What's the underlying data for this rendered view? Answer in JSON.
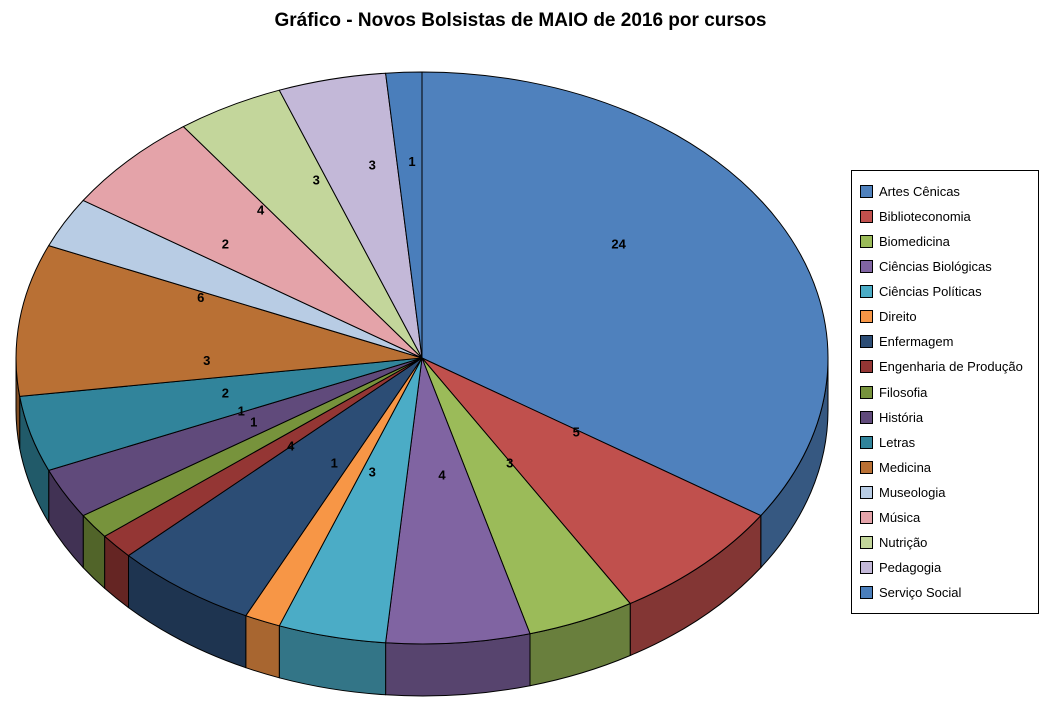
{
  "title": "Gráfico - Novos Bolsistas de MAIO de 2016 por cursos",
  "background_color": "#FFFFFF",
  "legend": {
    "border_color": "#000000",
    "position": "right"
  },
  "chart_data": {
    "type": "pie",
    "style": "3d",
    "title": "Gráfico - Novos Bolsistas de MAIO de 2016 por cursos",
    "direction": "clockwise",
    "start_angle_deg": 0,
    "data_labels": "value",
    "legend_position": "right",
    "categories": [
      "Artes Cênicas",
      "Biblioteconomia",
      "Biomedicina",
      "Ciências Biológicas",
      "Ciências Políticas",
      "Direito",
      "Enfermagem",
      "Engenharia de Produção",
      "Filosofia",
      "História",
      "Letras",
      "Medicina",
      "Museologia",
      "Música",
      "Nutrição",
      "Pedagogia",
      "Serviço Social"
    ],
    "values": [
      24,
      5,
      3,
      4,
      3,
      1,
      4,
      1,
      1,
      2,
      3,
      6,
      2,
      4,
      3,
      3,
      1
    ],
    "colors": [
      "#4F81BD",
      "#C0504D",
      "#9BBB59",
      "#8064A2",
      "#4BACC6",
      "#F79646",
      "#2C4D75",
      "#943634",
      "#77933C",
      "#604A7B",
      "#31849B",
      "#B97034",
      "#B8CCE4",
      "#E4A3A9",
      "#C3D69B",
      "#C3B8D8",
      "#4A7EBB"
    ]
  }
}
